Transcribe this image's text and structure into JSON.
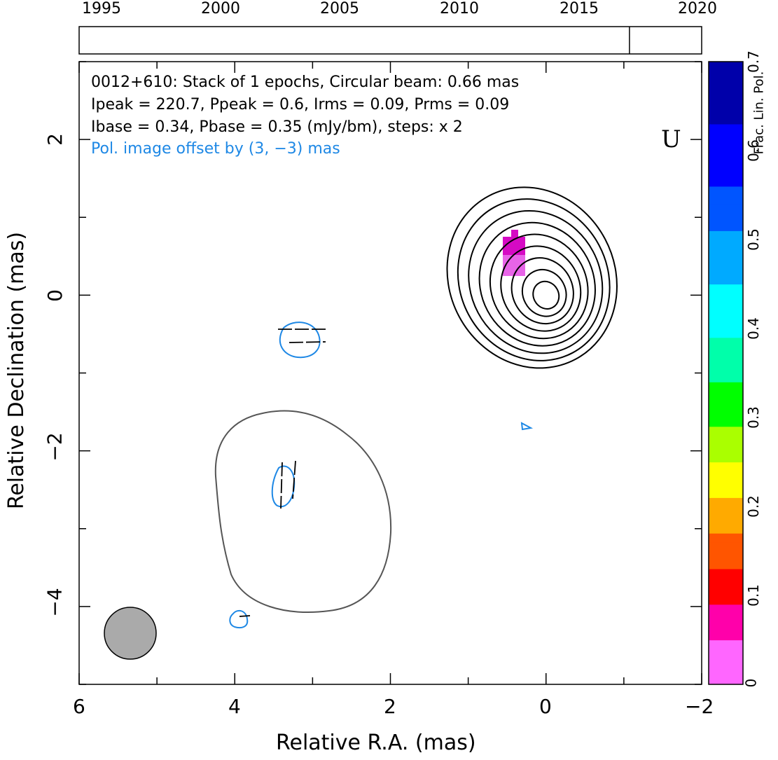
{
  "chart_data": {
    "type": "contour",
    "header_lines": [
      "0012+610: Stack of 1 epochs, Circular beam: 0.66 mas",
      "Ipeak = 220.7, Ppeak = 0.6, Irms = 0.09, Prms = 0.09",
      "Ibase = 0.34, Pbase = 0.35 (mJy/bm), steps: x 2"
    ],
    "pol_offset_note": "Pol. image offset by (3, −3) mas",
    "band_label": "U",
    "xlabel": "Relative R.A. (mas)",
    "ylabel": "Relative Declination (mas)",
    "xlim": [
      6,
      -2
    ],
    "ylim": [
      -5,
      3
    ],
    "x_ticks": [
      6,
      4,
      2,
      0,
      -2
    ],
    "x_tick_labels": [
      "6",
      "4",
      "2",
      "0",
      "−2"
    ],
    "y_ticks": [
      2,
      0,
      -2,
      -4
    ],
    "y_tick_labels": [
      "2",
      "0",
      "−2",
      "−4"
    ],
    "timeline": {
      "range": [
        1995,
        2020
      ],
      "tick_labels": [
        "1995",
        "2000",
        "2005",
        "2010",
        "2015",
        "2020"
      ],
      "epochs": [
        2017.1
      ]
    },
    "colorbar": {
      "label": "Frac. Lin. Pol.",
      "range": [
        0,
        0.7
      ],
      "tick_labels": [
        "0",
        "0.1",
        "0.2",
        "0.3",
        "0.4",
        "0.5",
        "0.6",
        "0.7"
      ]
    },
    "beam_diameter_mas": 0.66,
    "stokes_i_contours": {
      "peak_position": [
        0,
        0
      ],
      "levels_count": 9
    },
    "extended_contour_center": [
      2.7,
      -2.9
    ],
    "colors": {
      "pol_contour": "#1e88e5",
      "pol_note": "#1e88e5",
      "i_contour": "#000000",
      "extended_contour": "#555555",
      "beam": "#aaaaaa",
      "pol_patch": "#e60ac8"
    }
  }
}
